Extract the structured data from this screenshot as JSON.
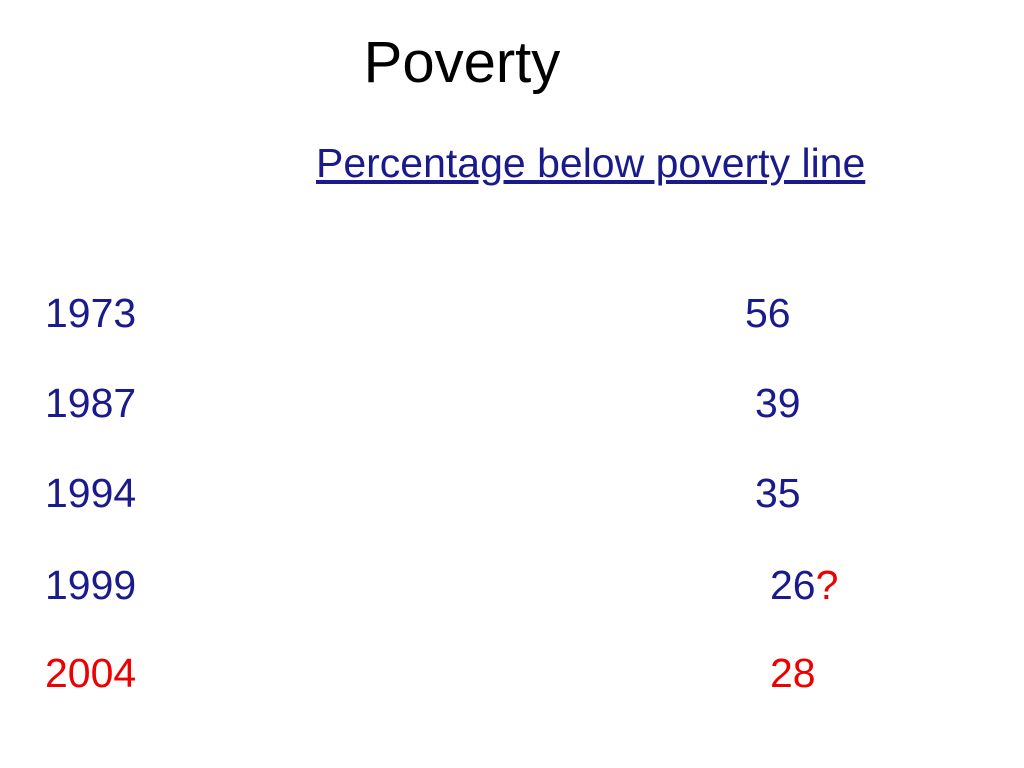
{
  "title": "Poverty",
  "header": "Percentage below poverty line",
  "rows": [
    {
      "year": 1973,
      "value": 56
    },
    {
      "year": 1987,
      "value": 39
    },
    {
      "year": 1994,
      "value": 35
    },
    {
      "year": 1999,
      "value": 26,
      "mark": "?"
    },
    {
      "year": 2004,
      "value": 28
    }
  ]
}
